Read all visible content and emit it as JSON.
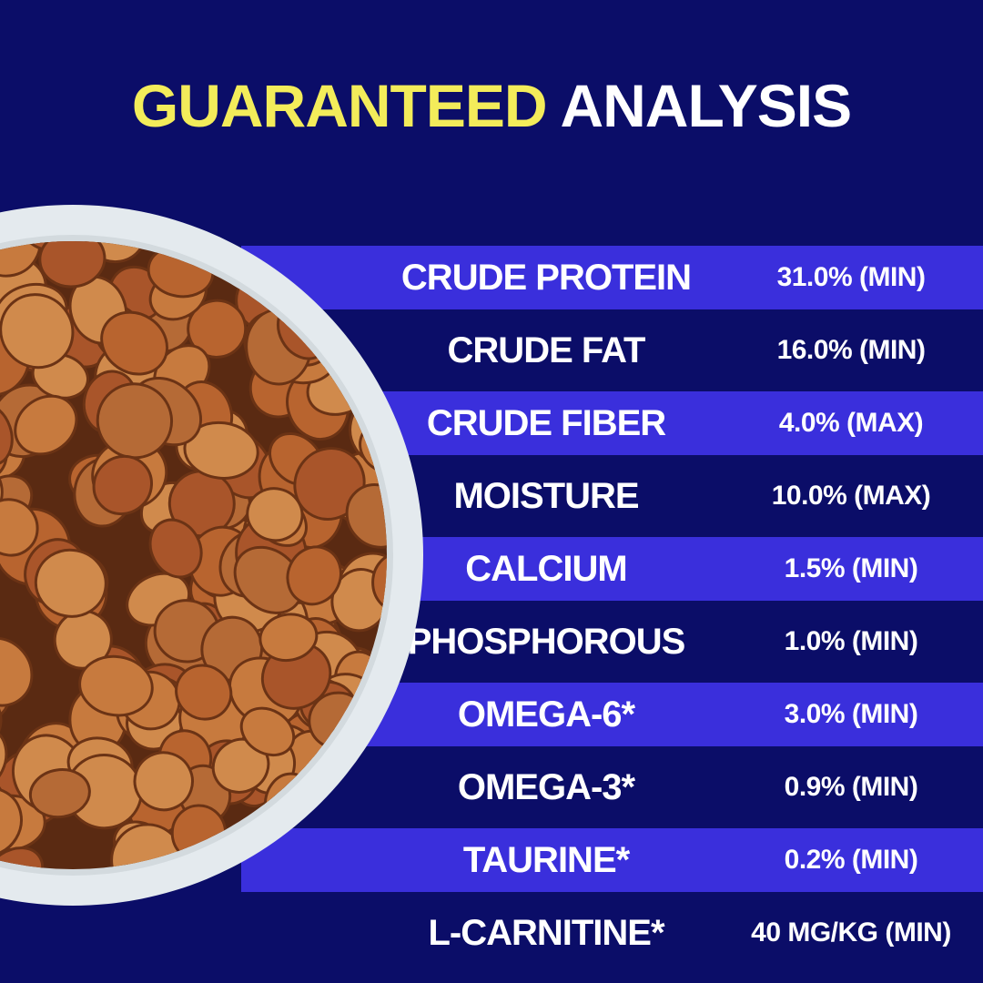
{
  "header": {
    "title_highlight": "GUARANTEED",
    "title_rest": "ANALYSIS"
  },
  "table": {
    "rows": [
      [
        "CRUDE PROTEIN",
        "31.0% (MIN)"
      ],
      [
        "CRUDE FAT",
        "16.0% (MIN)"
      ],
      [
        "CRUDE FIBER",
        "4.0% (MAX)"
      ],
      [
        "MOISTURE",
        "10.0% (MAX)"
      ],
      [
        "CALCIUM",
        "1.5% (MIN)"
      ],
      [
        "PHOSPHOROUS",
        "1.0% (MIN)"
      ],
      [
        "OMEGA-6*",
        "3.0% (MIN)"
      ],
      [
        "OMEGA-3*",
        "0.9% (MIN)"
      ],
      [
        "TAURINE*",
        "0.2% (MIN)"
      ],
      [
        "L-CARNITINE*",
        "40 MG/KG (MIN)"
      ]
    ]
  }
}
